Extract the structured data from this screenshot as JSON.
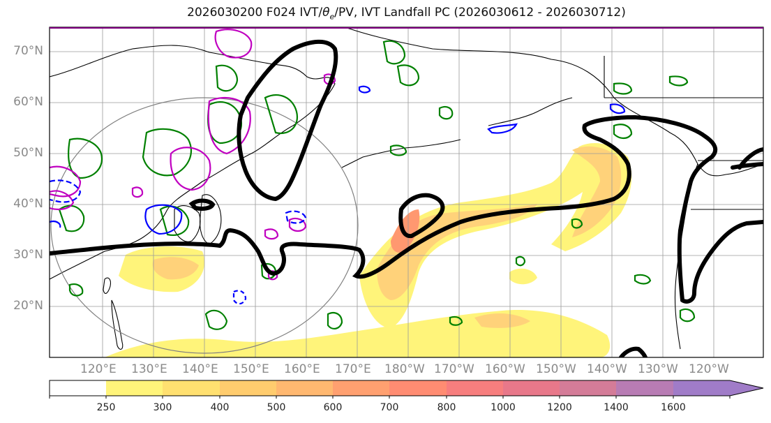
{
  "title": "2026030200 F024 IVT/θe/PV, IVT Landfall PC (2026030612 - 2026030712)",
  "title_parts": {
    "prefix": "2026030200 F024 IVT/",
    "theta": "θ",
    "sub": "e",
    "suffix": "/PV, IVT Landfall PC (2026030612 - 2026030712)"
  },
  "lat_labels": [
    "70°N",
    "60°N",
    "50°N",
    "40°N",
    "30°N",
    "20°N"
  ],
  "lon_labels": [
    "120°E",
    "130°E",
    "140°E",
    "150°E",
    "160°E",
    "170°E",
    "180°W",
    "170°W",
    "160°W",
    "150°W",
    "140°W",
    "130°W",
    "120°W"
  ],
  "colorbar": {
    "labels": [
      "250",
      "300",
      "400",
      "500",
      "600",
      "700",
      "800",
      "1000",
      "1200",
      "1400",
      "1600"
    ],
    "colors": [
      "#ffffff",
      "#fff47a",
      "#ffe070",
      "#ffcc6e",
      "#ffb870",
      "#ffa070",
      "#ff8c72",
      "#f77e7e",
      "#e8788a",
      "#d47c98",
      "#b87cb4",
      "#a07cc8"
    ]
  },
  "map_colors": {
    "ivt_light": "#fff47a",
    "ivt_mid": "#ffd27a",
    "ivt_core": "#ff9870",
    "pc_contour": "#000000",
    "theta_contour": "#008000",
    "pv_contour": "#c000c0",
    "neg_contour": "#0000ff",
    "circle": "#808080"
  }
}
